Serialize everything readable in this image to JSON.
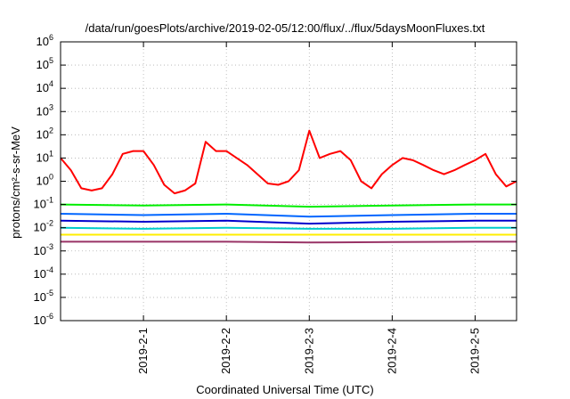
{
  "chart_data": {
    "type": "line",
    "title": "/data/run/goesPlots/archive/2019-02-05/12:00/flux/../flux/5daysMoonFluxes.txt",
    "xlabel": "Coordinated Universal Time (UTC)",
    "ylabel": "protons/cm²-s-sr-MeV",
    "y_scale": "log",
    "ylim": [
      1e-06,
      1000000.0
    ],
    "xlim": [
      "2019-01-31T00:00",
      "2019-02-05T12:00"
    ],
    "y_tick_values": [
      1e-06,
      1e-05,
      0.0001,
      0.001,
      0.01,
      0.1,
      1.0,
      10.0,
      100.0,
      1000.0,
      10000.0,
      100000.0,
      1000000.0
    ],
    "y_tick_exponents": [
      "-6",
      "-5",
      "-4",
      "-3",
      "-2",
      "-1",
      "0",
      "1",
      "2",
      "3",
      "4",
      "5",
      "6"
    ],
    "x_tick_values": [
      "2019-02-01T00:00",
      "2019-02-02T00:00",
      "2019-02-03T00:00",
      "2019-02-04T00:00",
      "2019-02-05T00:00"
    ],
    "x_tick_labels": [
      "2019-2-1",
      "2019-2-2",
      "2019-2-3",
      "2019-2-4",
      "2019-2-5"
    ],
    "grid": true,
    "legend": "none",
    "series": [
      {
        "color": "#ff0000",
        "x": [
          "2019-01-31T00:00",
          "2019-01-31T03:00",
          "2019-01-31T06:00",
          "2019-01-31T09:00",
          "2019-01-31T12:00",
          "2019-01-31T15:00",
          "2019-01-31T18:00",
          "2019-01-31T21:00",
          "2019-02-01T00:00",
          "2019-02-01T03:00",
          "2019-02-01T06:00",
          "2019-02-01T09:00",
          "2019-02-01T12:00",
          "2019-02-01T15:00",
          "2019-02-01T18:00",
          "2019-02-01T21:00",
          "2019-02-02T00:00",
          "2019-02-02T03:00",
          "2019-02-02T06:00",
          "2019-02-02T09:00",
          "2019-02-02T12:00",
          "2019-02-02T15:00",
          "2019-02-02T18:00",
          "2019-02-02T21:00",
          "2019-02-03T00:00",
          "2019-02-03T03:00",
          "2019-02-03T06:00",
          "2019-02-03T09:00",
          "2019-02-03T12:00",
          "2019-02-03T15:00",
          "2019-02-03T18:00",
          "2019-02-03T21:00",
          "2019-02-04T00:00",
          "2019-02-04T03:00",
          "2019-02-04T06:00",
          "2019-02-04T09:00",
          "2019-02-04T12:00",
          "2019-02-04T15:00",
          "2019-02-04T18:00",
          "2019-02-04T21:00",
          "2019-02-05T00:00",
          "2019-02-05T03:00",
          "2019-02-05T06:00",
          "2019-02-05T09:00",
          "2019-02-05T12:00"
        ],
        "y": [
          10,
          3,
          0.5,
          0.4,
          0.5,
          2,
          15,
          20,
          20,
          5,
          0.7,
          0.3,
          0.4,
          0.8,
          50,
          20,
          20,
          10,
          5,
          2,
          0.8,
          0.7,
          1,
          3,
          150,
          10,
          15,
          20,
          8,
          1,
          0.5,
          2,
          5,
          10,
          8,
          5,
          3,
          2,
          3,
          5,
          8,
          15,
          2,
          0.6,
          1
        ]
      },
      {
        "color": "#00ee00",
        "x": [
          "2019-01-31T00:00",
          "2019-02-01T00:00",
          "2019-02-02T00:00",
          "2019-02-03T00:00",
          "2019-02-04T00:00",
          "2019-02-05T00:00",
          "2019-02-05T12:00"
        ],
        "y": [
          0.1,
          0.09,
          0.1,
          0.08,
          0.09,
          0.1,
          0.1
        ]
      },
      {
        "color": "#0066ff",
        "x": [
          "2019-01-31T00:00",
          "2019-02-01T00:00",
          "2019-02-02T00:00",
          "2019-02-03T00:00",
          "2019-02-04T00:00",
          "2019-02-05T00:00",
          "2019-02-05T12:00"
        ],
        "y": [
          0.04,
          0.035,
          0.04,
          0.03,
          0.035,
          0.04,
          0.04
        ]
      },
      {
        "color": "#0000cc",
        "x": [
          "2019-01-31T00:00",
          "2019-02-01T00:00",
          "2019-02-02T00:00",
          "2019-02-03T00:00",
          "2019-02-04T00:00",
          "2019-02-05T00:00",
          "2019-02-05T12:00"
        ],
        "y": [
          0.02,
          0.018,
          0.02,
          0.015,
          0.018,
          0.02,
          0.02
        ]
      },
      {
        "color": "#00cccc",
        "x": [
          "2019-01-31T00:00",
          "2019-02-01T00:00",
          "2019-02-02T00:00",
          "2019-02-03T00:00",
          "2019-02-04T00:00",
          "2019-02-05T00:00",
          "2019-02-05T12:00"
        ],
        "y": [
          0.01,
          0.009,
          0.01,
          0.009,
          0.009,
          0.01,
          0.01
        ]
      },
      {
        "color": "#ffee00",
        "x": [
          "2019-01-31T00:00",
          "2019-02-01T00:00",
          "2019-02-02T00:00",
          "2019-02-03T00:00",
          "2019-02-04T00:00",
          "2019-02-05T00:00",
          "2019-02-05T12:00"
        ],
        "y": [
          0.005,
          0.005,
          0.005,
          0.005,
          0.005,
          0.005,
          0.005
        ]
      },
      {
        "color": "#993366",
        "x": [
          "2019-01-31T00:00",
          "2019-02-01T00:00",
          "2019-02-02T00:00",
          "2019-02-03T00:00",
          "2019-02-04T00:00",
          "2019-02-05T00:00",
          "2019-02-05T12:00"
        ],
        "y": [
          0.0025,
          0.0025,
          0.0025,
          0.0023,
          0.0024,
          0.0025,
          0.0025
        ]
      }
    ]
  }
}
